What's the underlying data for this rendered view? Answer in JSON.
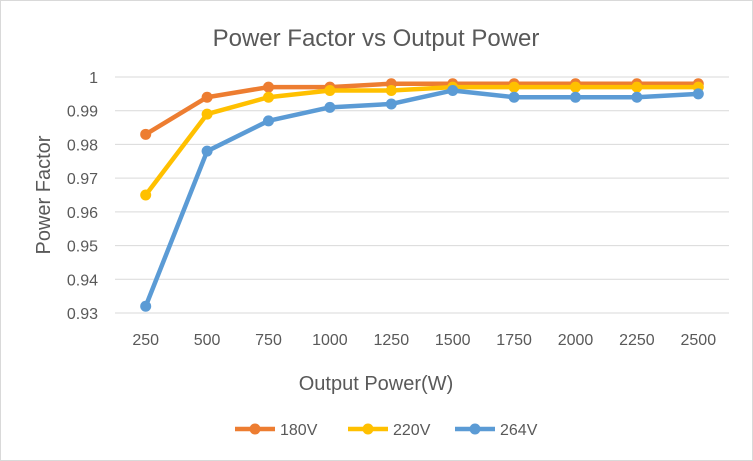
{
  "chart_data": {
    "type": "line",
    "title": "Power Factor vs Output Power",
    "xlabel": "Output Power(W)",
    "ylabel": "Power Factor",
    "categories": [
      "250",
      "500",
      "750",
      "1000",
      "1250",
      "1500",
      "1750",
      "2000",
      "2250",
      "2500"
    ],
    "ylim": [
      0.93,
      1.0
    ],
    "yticks": [
      "0.93",
      "0.94",
      "0.95",
      "0.96",
      "0.97",
      "0.98",
      "0.99",
      "1"
    ],
    "grid": true,
    "legend_position": "bottom",
    "series": [
      {
        "name": "180V",
        "color": "#ED7D31",
        "values": [
          0.983,
          0.994,
          0.997,
          0.997,
          0.998,
          0.998,
          0.998,
          0.998,
          0.998,
          0.998
        ]
      },
      {
        "name": "220V",
        "color": "#FFC000",
        "values": [
          0.965,
          0.989,
          0.994,
          0.996,
          0.996,
          0.997,
          0.997,
          0.997,
          0.997,
          0.997
        ]
      },
      {
        "name": "264V",
        "color": "#5B9BD5",
        "values": [
          0.932,
          0.978,
          0.987,
          0.991,
          0.992,
          0.996,
          0.994,
          0.994,
          0.994,
          0.995
        ]
      }
    ]
  }
}
